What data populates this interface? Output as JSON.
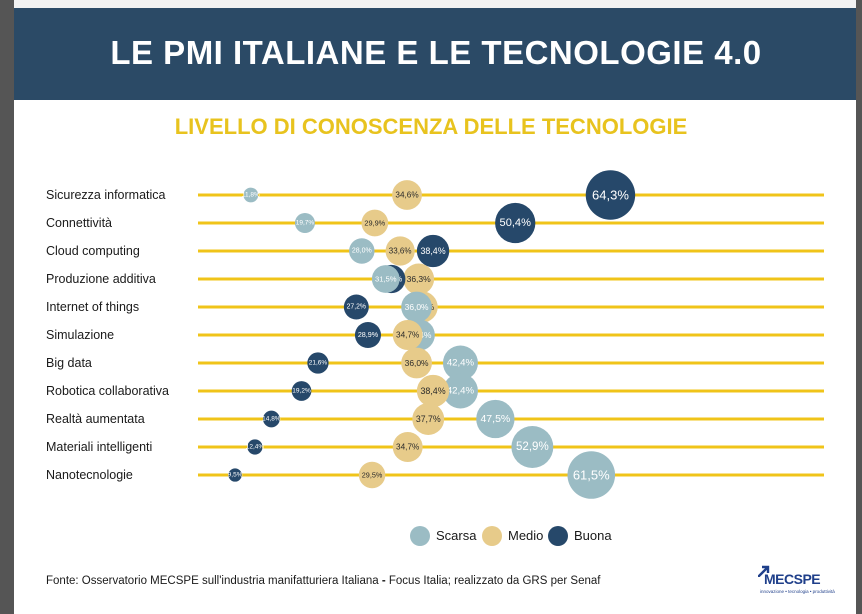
{
  "header": {
    "title": "LE PMI ITALIANE E LE TECNOLOGIE 4.0"
  },
  "chart_data": {
    "type": "scatter",
    "title": "LIVELLO DI CONOSCENZA DELLE TECNOLOGIE",
    "categories": [
      "Sicurezza informatica",
      "Connettività",
      "Cloud computing",
      "Produzione additiva",
      "Internet of things",
      "Simulazione",
      "Big data",
      "Robotica collaborativa",
      "Realtà aumentata",
      "Materiali intelligenti",
      "Nanotecnologie"
    ],
    "series": [
      {
        "name": "Scarsa",
        "color": "#9bbcc4",
        "values": [
          11.8,
          19.7,
          28.0,
          31.5,
          36.0,
          36.4,
          42.4,
          42.4,
          47.5,
          52.9,
          61.5
        ],
        "labels": [
          "11,8%",
          "19,7%",
          "28,0%",
          "31,5%",
          "36,0%",
          "36,4%",
          "42,4%",
          "42,4%",
          "47,5%",
          "52,9%",
          "61,5%"
        ]
      },
      {
        "name": "Medio",
        "color": "#e7cb8a",
        "values": [
          34.6,
          29.9,
          33.6,
          36.3,
          36.8,
          34.7,
          36.0,
          38.4,
          37.7,
          34.7,
          29.5
        ],
        "labels": [
          "34,6%",
          "29,9%",
          "33,6%",
          "36,3%",
          "36,8%",
          "34,7%",
          "36,0%",
          "38,4%",
          "37,7%",
          "34,7%",
          "29,5%"
        ]
      },
      {
        "name": "Buona",
        "color": "#26486a",
        "values": [
          64.3,
          50.4,
          38.4,
          32.3,
          27.2,
          28.9,
          21.6,
          19.2,
          14.8,
          12.4,
          9.5
        ],
        "labels": [
          "64,3%",
          "50,4%",
          "38,4%",
          "32,3%",
          "27,2%",
          "28,9%",
          "21,6%",
          "19,2%",
          "14,8%",
          "12,4%",
          "9,5%"
        ]
      }
    ],
    "line_color": "#f0c419",
    "grid": false,
    "legend_position": "bottom"
  },
  "legend": {
    "items": [
      "Scarsa",
      "Medio",
      "Buona"
    ]
  },
  "footer": {
    "source_prefix": "Fonte: Osservatorio MECSPE sull'industria manifatturiera Italiana",
    "source_sep": " - ",
    "source_suffix": "Focus Italia; realizzato da GRS per Senaf",
    "logo": "MECSPE",
    "logo_tagline": "innovazione • tecnologia • produttività"
  }
}
